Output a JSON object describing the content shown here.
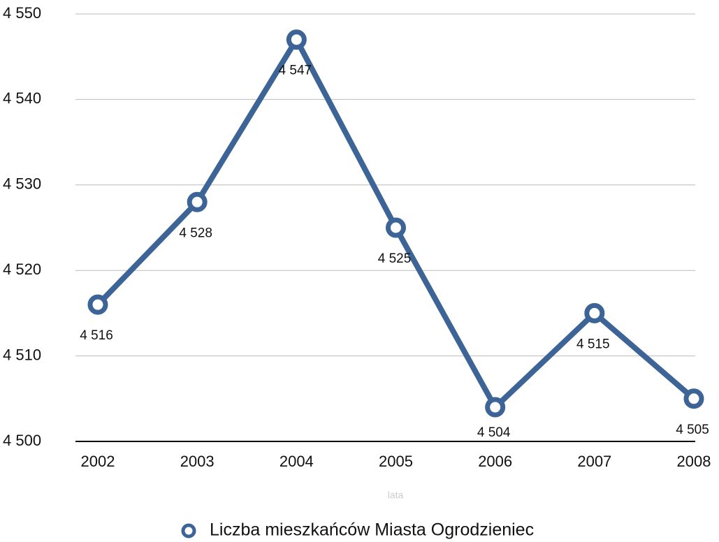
{
  "chart_data": {
    "type": "line",
    "x_label": "lata",
    "categories": [
      "2002",
      "2003",
      "2004",
      "2005",
      "2006",
      "2007",
      "2008"
    ],
    "series": [
      {
        "name": "Liczba mieszkańców Miasta Ogrodzieniec",
        "color": "#3d6496",
        "values": [
          4516,
          4528,
          4547,
          4525,
          4504,
          4515,
          4505
        ],
        "value_labels": [
          "4 516",
          "4 528",
          "4 547",
          "4 525",
          "4 504",
          "4 515",
          "4 505"
        ]
      }
    ],
    "ylim": [
      4500,
      4550
    ],
    "yticks": [
      {
        "value": 4500,
        "label": "4 500"
      },
      {
        "value": 4510,
        "label": "4 510"
      },
      {
        "value": 4520,
        "label": "4 520"
      },
      {
        "value": 4530,
        "label": "4 530"
      },
      {
        "value": 4540,
        "label": "4 540"
      },
      {
        "value": 4550,
        "label": "4 550"
      }
    ],
    "grid": true,
    "legend": "bottom"
  }
}
